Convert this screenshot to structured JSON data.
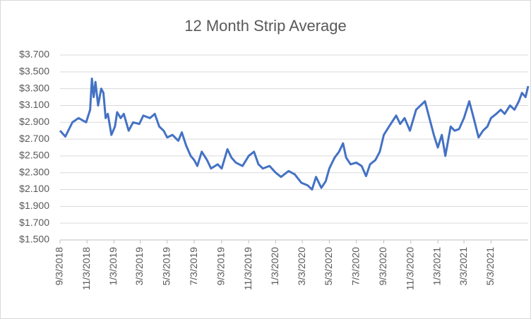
{
  "chart_data": {
    "type": "line",
    "title": "12 Month Strip Average",
    "x": [
      "9/3/2018",
      "9/15/2018",
      "10/1/2018",
      "10/15/2018",
      "11/1/2018",
      "11/10/2018",
      "11/14/2018",
      "11/18/2018",
      "11/22/2018",
      "11/28/2018",
      "12/5/2018",
      "12/10/2018",
      "12/15/2018",
      "12/20/2018",
      "12/28/2018",
      "1/5/2019",
      "1/10/2019",
      "1/18/2019",
      "1/25/2019",
      "2/5/2019",
      "2/15/2019",
      "3/1/2019",
      "3/10/2019",
      "3/25/2019",
      "4/5/2019",
      "4/15/2019",
      "4/25/2019",
      "5/3/2019",
      "5/15/2019",
      "5/28/2019",
      "6/5/2019",
      "6/15/2019",
      "6/25/2019",
      "7/3/2019",
      "7/10/2019",
      "7/20/2019",
      "8/1/2019",
      "8/10/2019",
      "8/25/2019",
      "9/3/2019",
      "9/16/2019",
      "9/25/2019",
      "10/5/2019",
      "10/20/2019",
      "11/3/2019",
      "11/15/2019",
      "11/25/2019",
      "12/5/2019",
      "12/20/2019",
      "1/3/2020",
      "1/15/2020",
      "2/1/2020",
      "2/15/2020",
      "3/1/2020",
      "3/15/2020",
      "3/25/2020",
      "4/3/2020",
      "4/15/2020",
      "4/25/2020",
      "5/3/2020",
      "5/15/2020",
      "5/25/2020",
      "6/3/2020",
      "6/10/2020",
      "6/20/2020",
      "7/3/2020",
      "7/15/2020",
      "7/25/2020",
      "8/3/2020",
      "8/15/2020",
      "8/25/2020",
      "9/3/2020",
      "9/15/2020",
      "10/1/2020",
      "10/10/2020",
      "10/20/2020",
      "11/1/2020",
      "11/15/2020",
      "11/25/2020",
      "12/5/2020",
      "12/15/2020",
      "12/25/2020",
      "1/3/2021",
      "1/12/2021",
      "1/20/2021",
      "2/1/2021",
      "2/10/2021",
      "2/20/2021",
      "3/3/2021",
      "3/15/2021",
      "3/25/2021",
      "4/5/2021",
      "4/15/2021",
      "4/25/2021",
      "5/3/2021",
      "5/15/2021",
      "5/25/2021",
      "6/3/2021",
      "6/15/2021",
      "6/25/2021",
      "7/5/2021",
      "7/12/2021",
      "7/20/2021",
      "7/26/2021"
    ],
    "series": [
      {
        "color": "#4472c4",
        "values": [
          2.8,
          2.73,
          2.9,
          2.95,
          2.9,
          3.05,
          3.42,
          3.2,
          3.38,
          3.1,
          3.3,
          3.25,
          2.95,
          3.0,
          2.75,
          2.85,
          3.02,
          2.95,
          3.0,
          2.8,
          2.9,
          2.88,
          2.98,
          2.95,
          3.0,
          2.85,
          2.8,
          2.72,
          2.75,
          2.68,
          2.78,
          2.62,
          2.5,
          2.45,
          2.38,
          2.55,
          2.45,
          2.35,
          2.4,
          2.35,
          2.58,
          2.48,
          2.42,
          2.38,
          2.5,
          2.55,
          2.4,
          2.35,
          2.38,
          2.3,
          2.25,
          2.32,
          2.28,
          2.18,
          2.15,
          2.1,
          2.25,
          2.12,
          2.2,
          2.35,
          2.48,
          2.55,
          2.65,
          2.48,
          2.4,
          2.42,
          2.38,
          2.26,
          2.4,
          2.45,
          2.55,
          2.75,
          2.85,
          2.98,
          2.88,
          2.95,
          2.8,
          3.05,
          3.1,
          3.15,
          2.95,
          2.75,
          2.6,
          2.75,
          2.5,
          2.85,
          2.8,
          2.82,
          2.95,
          3.15,
          2.95,
          2.72,
          2.8,
          2.85,
          2.95,
          3.0,
          3.05,
          3.0,
          3.1,
          3.05,
          3.15,
          3.25,
          3.2,
          3.33
        ]
      }
    ],
    "xlim": [
      "9/3/2018",
      "7/26/2021"
    ],
    "xticks": [
      "9/3/2018",
      "11/3/2018",
      "1/3/2019",
      "3/3/2019",
      "5/3/2019",
      "7/3/2019",
      "9/3/2019",
      "11/3/2019",
      "1/3/2020",
      "3/3/2020",
      "5/3/2020",
      "7/3/2020",
      "9/3/2020",
      "11/3/2020",
      "1/3/2021",
      "3/3/2021",
      "5/3/2021"
    ],
    "ylim": [
      1.5,
      3.7
    ],
    "yticks": [
      {
        "value": 1.5,
        "label": "$1.500"
      },
      {
        "value": 1.7,
        "label": "$1.700"
      },
      {
        "value": 1.9,
        "label": "$1.900"
      },
      {
        "value": 2.1,
        "label": "$2.100"
      },
      {
        "value": 2.3,
        "label": "$2.300"
      },
      {
        "value": 2.5,
        "label": "$2.500"
      },
      {
        "value": 2.7,
        "label": "$2.700"
      },
      {
        "value": 2.9,
        "label": "$2.900"
      },
      {
        "value": 3.1,
        "label": "$3.100"
      },
      {
        "value": 3.3,
        "label": "$3.300"
      },
      {
        "value": 3.5,
        "label": "$3.500"
      },
      {
        "value": 3.7,
        "label": "$3.700"
      }
    ],
    "grid": true
  }
}
